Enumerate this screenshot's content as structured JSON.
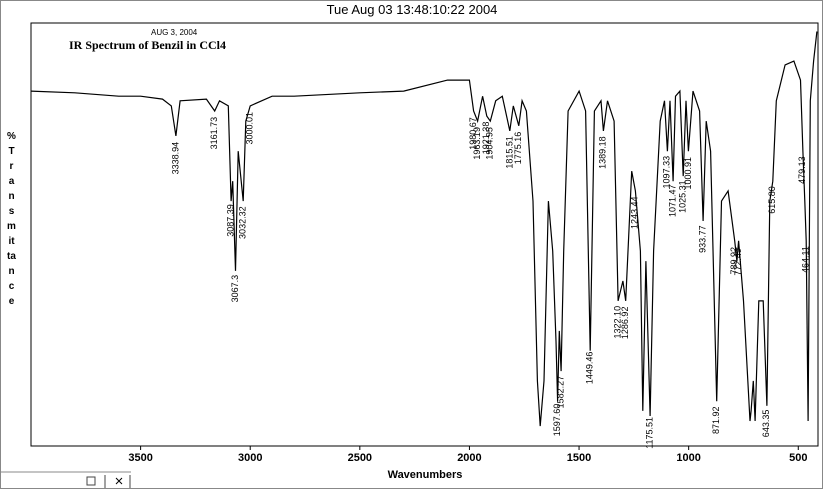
{
  "chart_data": {
    "type": "line",
    "title": "Tue Aug 03 13:48:10:22 2004",
    "date_note": "AUG 3, 2004",
    "subtitle": "IR Spectrum of Benzil in CCl4",
    "x_label": "Wavenumbers",
    "y_label": "% Transmittance",
    "color": "#000000",
    "xlim": [
      4000,
      410
    ],
    "ylim": [
      0,
      100
    ],
    "xticks": [
      3500,
      3000,
      2500,
      2000,
      1500,
      1000,
      500
    ],
    "x": [
      4000,
      3800,
      3600,
      3500,
      3400,
      3360,
      3339,
      3320,
      3200,
      3162,
      3140,
      3100,
      3087,
      3080,
      3067,
      3055,
      3032,
      3020,
      3000,
      2900,
      2800,
      2500,
      2300,
      2100,
      2000,
      1981,
      1963,
      1940,
      1921,
      1905,
      1880,
      1850,
      1816,
      1800,
      1775,
      1760,
      1740,
      1710,
      1690,
      1677,
      1660,
      1640,
      1620,
      1605,
      1598,
      1590,
      1582,
      1570,
      1550,
      1500,
      1470,
      1449,
      1430,
      1400,
      1389,
      1370,
      1340,
      1322,
      1300,
      1287,
      1260,
      1243,
      1220,
      1209,
      1195,
      1176,
      1160,
      1130,
      1110,
      1097,
      1085,
      1071,
      1060,
      1040,
      1025,
      1012,
      1001,
      980,
      950,
      934,
      920,
      900,
      872,
      850,
      820,
      790,
      780,
      772,
      750,
      720,
      715,
      705,
      697,
      680,
      660,
      643,
      630,
      616,
      600,
      560,
      520,
      490,
      479,
      470,
      464,
      455,
      445,
      430,
      415
    ],
    "values": [
      83.9,
      83.5,
      82.7,
      82.7,
      82,
      80.4,
      73.3,
      81.6,
      82,
      79.2,
      81.6,
      80.4,
      57.9,
      62.6,
      41.4,
      69.7,
      57.9,
      76.8,
      80.4,
      82.7,
      82.7,
      83.5,
      83.9,
      86.5,
      86.5,
      79.2,
      76.8,
      82.7,
      78,
      76.8,
      81.6,
      82.7,
      74.5,
      80.4,
      75.7,
      81.6,
      79.2,
      57.9,
      15.4,
      4.7,
      15.4,
      57.9,
      46.1,
      24.8,
      10.6,
      27.2,
      17.7,
      46.1,
      79.2,
      83.9,
      79.2,
      22.5,
      79.2,
      81.6,
      74.5,
      81.6,
      76.8,
      34.3,
      39,
      34.3,
      65,
      60.3,
      46.1,
      8.3,
      43.7,
      7.1,
      46.1,
      76.8,
      81.6,
      69.7,
      81.6,
      62.6,
      82.7,
      83.9,
      63.8,
      81.6,
      69.7,
      83.9,
      79.2,
      53.2,
      76.8,
      69.7,
      10.6,
      57.9,
      60.3,
      48.5,
      43.7,
      48.5,
      34.3,
      5.9,
      8.3,
      15.4,
      5.9,
      34.3,
      34.3,
      9.5,
      57.9,
      62.6,
      81.6,
      90.1,
      91,
      86.5,
      69.7,
      57.9,
      48.5,
      5.9,
      81.6,
      91,
      98
    ],
    "peak_labels": [
      3338.94,
      3161.73,
      3087.39,
      3067.3,
      3032.32,
      3000.01,
      1980.67,
      1963.19,
      1921.38,
      1904.95,
      1815.51,
      1775.16,
      {
        "value": 1597.6,
        "label": "1597.60"
      },
      1582.27,
      1449.46,
      1389.18,
      {
        "value": 1322.1,
        "label": "1322.10"
      },
      1286.92,
      1243.44,
      1175.51,
      1097.33,
      1071.47,
      1025.31,
      1000.91,
      933.77,
      871.92,
      789.92,
      772.49,
      643.35,
      {
        "value": 615.8,
        "label": "615.80"
      },
      479.13,
      464.11
    ]
  }
}
